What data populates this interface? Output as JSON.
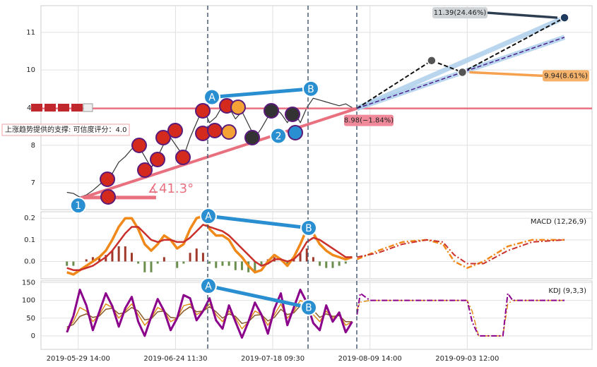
{
  "chart_data": [
    {
      "type": "line",
      "yticks": [
        7,
        8,
        10,
        11
      ],
      "ylim": [
        6.29,
        11.71
      ],
      "x": [
        -7,
        -3,
        1,
        5,
        9,
        13,
        17,
        21,
        25,
        29,
        33,
        37,
        41,
        45,
        49,
        53,
        57,
        61,
        65,
        69,
        73,
        77,
        81,
        85,
        89,
        93,
        97,
        101,
        105,
        109,
        113,
        117,
        121,
        125,
        129,
        133,
        137,
        141,
        145,
        149,
        153,
        157,
        161,
        165,
        169
      ],
      "series": [
        {
          "color": "#333333",
          "values": [
            6.75,
            6.72,
            6.62,
            6.68,
            6.8,
            6.95,
            7.1,
            7.25,
            7.55,
            7.7,
            7.9,
            8.0,
            7.7,
            7.4,
            7.7,
            8.05,
            8.2,
            7.95,
            7.7,
            8.2,
            8.6,
            9.0,
            8.6,
            8.75,
            9.05,
            9.0,
            8.7,
            8.9,
            8.55,
            8.2,
            8.45,
            8.75,
            9.0,
            8.85,
            8.6,
            8.9,
            8.6,
            9.0,
            9.25,
            9.2,
            9.15,
            9.1,
            9.05,
            9.1,
            9.0
          ]
        }
      ],
      "support": {
        "x": [
          0,
          172
        ],
        "values": [
          6.57,
          8.98
        ],
        "color": "#e8707f"
      },
      "angle_base": {
        "x": [
          2,
          48
        ],
        "values": [
          6.61,
          6.61
        ]
      },
      "forecast": {
        "x": [
          172,
          218,
          237,
          300
        ],
        "values": [
          8.98,
          10.25,
          9.94,
          11.39
        ],
        "color": "#111111"
      },
      "forecast_low": {
        "x": [
          172,
          300
        ],
        "values": [
          8.98,
          10.87
        ],
        "color": "#4b1f8a"
      },
      "callouts": [
        {
          "value": 11.39,
          "label": "11.39(24.46%)"
        },
        {
          "value": 9.94,
          "label": "9.94(8.61%)"
        },
        {
          "value": 8.98,
          "label": "8.98(−1.84%)"
        }
      ],
      "trend_ab": {
        "x": [
          82.5,
          143.5
        ],
        "values": [
          9.28,
          9.5
        ]
      },
      "points": [
        {
          "label": "1",
          "x": 0,
          "value": 6.4
        },
        {
          "label": "A",
          "x": 82.5,
          "value": 9.28
        },
        {
          "label": "2",
          "x": 123.5,
          "value": 8.25
        },
        {
          "label": "B",
          "x": 143.5,
          "value": 9.5
        }
      ],
      "angle_label": "∡41.3°",
      "support_note": "上涨趋势提供的支撑: 可信度评分：4.0",
      "fragment": "4"
    },
    {
      "type": "line",
      "title": "MACD (12,26,9)",
      "yticks": [
        0.2,
        0.1,
        {
          "value": 0,
          "label": "0.0"
        }
      ],
      "ylim": [
        -0.08,
        0.23
      ],
      "x": [
        -7,
        -3,
        1,
        5,
        9,
        13,
        17,
        21,
        25,
        29,
        33,
        37,
        41,
        45,
        49,
        53,
        57,
        61,
        65,
        69,
        73,
        77,
        81,
        85,
        89,
        93,
        97,
        101,
        105,
        109,
        113,
        117,
        121,
        125,
        129,
        133,
        137,
        141,
        145,
        149,
        153,
        157,
        161,
        165,
        169
      ],
      "series": [
        {
          "type": "bar",
          "color": "#a0392c",
          "negative_color": "#6b8e4e",
          "values": [
            -0.02,
            -0.02,
            0,
            0.01,
            0.02,
            0.02,
            0.03,
            0.05,
            0.07,
            0.07,
            0.04,
            -0.01,
            -0.05,
            -0.05,
            -0.01,
            0.02,
            0,
            -0.03,
            -0.01,
            0.04,
            0.06,
            0.04,
            -0.01,
            -0.03,
            -0.02,
            -0.02,
            -0.04,
            -0.04,
            -0.05,
            -0.05,
            -0.02,
            0.01,
            0.02,
            0,
            -0.02,
            0.01,
            0.04,
            0.06,
            0.02,
            -0.02,
            -0.03,
            -0.03,
            -0.02,
            -0.01,
            0
          ]
        },
        {
          "color": "#f0891a",
          "width": 3.5,
          "values": [
            -0.05,
            -0.06,
            -0.04,
            -0.02,
            0.0,
            0.02,
            0.05,
            0.1,
            0.16,
            0.2,
            0.2,
            0.15,
            0.08,
            0.05,
            0.08,
            0.12,
            0.1,
            0.06,
            0.08,
            0.15,
            0.2,
            0.21,
            0.15,
            0.12,
            0.12,
            0.1,
            0.05,
            0.02,
            -0.02,
            -0.05,
            -0.04,
            0.0,
            0.03,
            0.01,
            -0.02,
            0.02,
            0.08,
            0.15,
            0.13,
            0.08,
            0.05,
            0.03,
            0.02,
            0.01,
            0.02
          ]
        },
        {
          "color": "#c9302c",
          "width": 2.5,
          "values": [
            -0.03,
            -0.04,
            -0.04,
            -0.03,
            -0.02,
            0.0,
            0.02,
            0.05,
            0.09,
            0.13,
            0.16,
            0.16,
            0.13,
            0.1,
            0.09,
            0.1,
            0.1,
            0.09,
            0.09,
            0.11,
            0.14,
            0.17,
            0.16,
            0.15,
            0.14,
            0.12,
            0.09,
            0.06,
            0.03,
            0.0,
            -0.02,
            -0.01,
            0.01,
            0.01,
            0.0,
            0.01,
            0.04,
            0.09,
            0.11,
            0.1,
            0.08,
            0.06,
            0.04,
            0.02,
            0.02
          ]
        },
        {
          "color": "#f0891a",
          "width": 2.5,
          "dash": true,
          "x": [
            172,
            185,
            200,
            215,
            225,
            232,
            240,
            250,
            265,
            280,
            300
          ],
          "values": [
            0.01,
            0.05,
            0.09,
            0.1,
            0.08,
            0.0,
            -0.03,
            0.0,
            0.07,
            0.1,
            0.1
          ]
        },
        {
          "color": "#c9302c",
          "width": 2,
          "dash": true,
          "x": [
            172,
            185,
            200,
            215,
            225,
            232,
            240,
            250,
            265,
            280,
            300
          ],
          "values": [
            0.02,
            0.04,
            0.08,
            0.1,
            0.09,
            0.03,
            -0.01,
            -0.01,
            0.05,
            0.09,
            0.1
          ]
        }
      ],
      "trend_ab": {
        "x": [
          80.3,
          142.2
        ],
        "values": [
          0.21,
          0.155
        ]
      },
      "points": [
        {
          "label": "A",
          "x": 80.3,
          "value": 0.21
        },
        {
          "label": "B",
          "x": 142.2,
          "value": 0.155
        }
      ]
    },
    {
      "type": "line",
      "title": "KDJ (9,3,3)",
      "yticks": [
        0,
        50,
        100,
        150
      ],
      "ylim": [
        -38,
        155
      ],
      "xlim": [
        -23,
        317
      ],
      "xticks": [
        {
          "value": 0,
          "label": "2019-05-29 14:00"
        },
        {
          "value": 60,
          "label": "2019-06-24 11:30"
        },
        {
          "value": 120,
          "label": "2019-07-18 09:30"
        },
        {
          "value": 180,
          "label": "2019-08-09 14:00"
        },
        {
          "value": 240,
          "label": "2019-09-03 12:00"
        }
      ],
      "x": [
        -7,
        -3,
        1,
        5,
        9,
        13,
        17,
        21,
        25,
        29,
        33,
        37,
        41,
        45,
        49,
        53,
        57,
        61,
        65,
        69,
        73,
        77,
        81,
        85,
        89,
        93,
        97,
        101,
        105,
        109,
        113,
        117,
        121,
        125,
        129,
        133,
        137,
        141,
        145,
        149,
        153,
        157,
        161,
        165,
        169
      ],
      "series": [
        {
          "color": "#e0901c",
          "width": 1.5,
          "values": [
            20,
            40,
            80,
            70,
            40,
            60,
            90,
            80,
            50,
            70,
            90,
            60,
            30,
            50,
            80,
            70,
            40,
            50,
            85,
            90,
            60,
            70,
            90,
            60,
            40,
            70,
            50,
            20,
            40,
            70,
            60,
            30,
            60,
            90,
            50,
            70,
            100,
            90,
            60,
            40,
            70,
            50,
            60,
            30,
            40
          ]
        },
        {
          "color": "#8a5a2b",
          "width": 1.5,
          "values": [
            25,
            32,
            55,
            62,
            52,
            56,
            75,
            78,
            62,
            66,
            80,
            70,
            45,
            48,
            68,
            70,
            52,
            50,
            70,
            82,
            68,
            70,
            82,
            68,
            50,
            62,
            55,
            35,
            40,
            58,
            60,
            42,
            52,
            75,
            60,
            65,
            85,
            88,
            72,
            52,
            62,
            55,
            57,
            40,
            40
          ]
        },
        {
          "color": "#8b008b",
          "width": 3,
          "values": [
            10,
            56,
            130,
            86,
            16,
            68,
            120,
            84,
            26,
            78,
            110,
            40,
            0,
            54,
            104,
            70,
            16,
            50,
            115,
            106,
            44,
            70,
            106,
            44,
            20,
            86,
            40,
            -5,
            40,
            94,
            60,
            6,
            76,
            120,
            30,
            80,
            130,
            94,
            36,
            16,
            86,
            40,
            66,
            10,
            40
          ]
        },
        {
          "color": "#e0901c",
          "width": 1.5,
          "dash": true,
          "x": [
            172,
            174,
            180,
            240,
            243,
            247,
            262,
            265,
            268,
            300
          ],
          "values": [
            75,
            95,
            100,
            100,
            70,
            0,
            0,
            90,
            100,
            100
          ]
        },
        {
          "color": "#8b008b",
          "width": 2,
          "dash": true,
          "x": [
            172,
            174,
            180,
            240,
            243,
            247,
            262,
            265,
            268,
            300
          ],
          "values": [
            60,
            120,
            100,
            100,
            40,
            0,
            0,
            120,
            100,
            100
          ]
        }
      ],
      "trend_ab": {
        "x": [
          80.3,
          142.2
        ],
        "values": [
          141,
          80
        ]
      },
      "points": [
        {
          "label": "A",
          "x": 80.3,
          "value": 141
        },
        {
          "label": "B",
          "x": 142.2,
          "value": 80
        }
      ]
    }
  ]
}
